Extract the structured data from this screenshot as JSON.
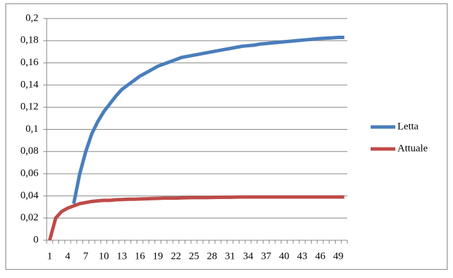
{
  "chart_data": {
    "type": "line",
    "categories": [
      1,
      null,
      null,
      4,
      null,
      null,
      7,
      null,
      null,
      10,
      null,
      null,
      13,
      null,
      null,
      16,
      null,
      null,
      19,
      null,
      null,
      22,
      null,
      null,
      25,
      null,
      null,
      28,
      null,
      null,
      31,
      null,
      null,
      34,
      null,
      null,
      37,
      null,
      null,
      40,
      null,
      null,
      43,
      null,
      null,
      46,
      null,
      null,
      49,
      null
    ],
    "series": [
      {
        "name": "Letta",
        "color": "#4a7ebb",
        "values": [
          null,
          null,
          null,
          null,
          0.033,
          0.06,
          0.08,
          0.096,
          0.107,
          0.116,
          0.123,
          0.13,
          0.136,
          0.14,
          0.144,
          0.148,
          0.151,
          0.154,
          0.157,
          0.159,
          0.161,
          0.163,
          0.165,
          0.166,
          0.167,
          0.168,
          0.169,
          0.17,
          0.171,
          0.172,
          0.173,
          0.174,
          0.175,
          0.1755,
          0.176,
          0.177,
          0.1775,
          0.178,
          0.1785,
          0.179,
          0.1795,
          0.18,
          0.1805,
          0.181,
          0.1815,
          0.182,
          0.1823,
          0.1826,
          0.183,
          0.183
        ]
      },
      {
        "name": "Attuale",
        "color": "#be4b48",
        "values": [
          0,
          0.02,
          0.026,
          0.029,
          0.031,
          0.033,
          0.034,
          0.035,
          0.0355,
          0.036,
          0.036,
          0.0365,
          0.0367,
          0.037,
          0.037,
          0.0372,
          0.0374,
          0.0376,
          0.0378,
          0.038,
          0.038,
          0.038,
          0.0382,
          0.0384,
          0.0385,
          0.0385,
          0.0385,
          0.0386,
          0.0387,
          0.0388,
          0.0388,
          0.0389,
          0.039,
          0.039,
          0.039,
          0.039,
          0.039,
          0.039,
          0.039,
          0.039,
          0.039,
          0.039,
          0.039,
          0.039,
          0.039,
          0.039,
          0.039,
          0.039,
          0.039,
          0.039
        ]
      }
    ],
    "ylim": [
      0,
      0.2
    ],
    "yticks": [
      {
        "value": 0,
        "label": "0"
      },
      {
        "value": 0.02,
        "label": "0,02"
      },
      {
        "value": 0.04,
        "label": "0,04"
      },
      {
        "value": 0.06,
        "label": "0,06"
      },
      {
        "value": 0.08,
        "label": "0,08"
      },
      {
        "value": 0.1,
        "label": "0,1"
      },
      {
        "value": 0.12,
        "label": "0,12"
      },
      {
        "value": 0.14,
        "label": "0,14"
      },
      {
        "value": 0.16,
        "label": "0,16"
      },
      {
        "value": 0.18,
        "label": "0,18"
      },
      {
        "value": 0.2,
        "label": "0,2"
      }
    ],
    "grid": true,
    "legend": "right"
  }
}
